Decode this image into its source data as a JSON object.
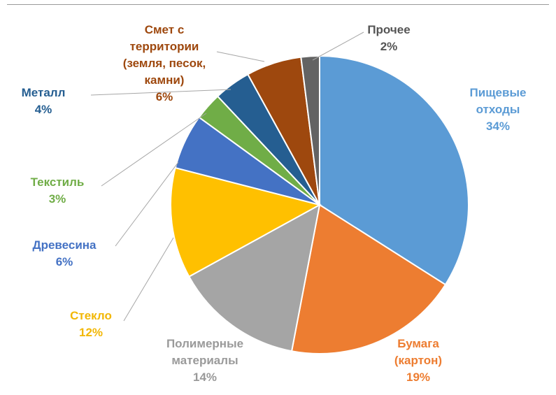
{
  "chart_data": {
    "type": "pie",
    "title": "",
    "slices": [
      {
        "label": [
          "Пищевые",
          "отходы"
        ],
        "value": 34,
        "value_text": "34%",
        "color": "#5B9BD5"
      },
      {
        "label": [
          "Бумага",
          "(картон)"
        ],
        "value": 19,
        "value_text": "19%",
        "color": "#ED7D31"
      },
      {
        "label": [
          "Полимерные",
          "материалы"
        ],
        "value": 14,
        "value_text": "14%",
        "color": "#A5A5A5",
        "label_color": "#9A9A9A"
      },
      {
        "label": [
          "Стекло"
        ],
        "value": 12,
        "value_text": "12%",
        "color": "#FFC000",
        "label_color": "#F2B705"
      },
      {
        "label": [
          "Древесина"
        ],
        "value": 6,
        "value_text": "6%",
        "color": "#4472C4"
      },
      {
        "label": [
          "Текстиль"
        ],
        "value": 3,
        "value_text": "3%",
        "color": "#70AD47"
      },
      {
        "label": [
          "Металл"
        ],
        "value": 4,
        "value_text": "4%",
        "color": "#255E91"
      },
      {
        "label": [
          "Смет с",
          "территории",
          "(земля, песок,",
          "камни)"
        ],
        "value": 6,
        "value_text": "6%",
        "color": "#9E480E"
      },
      {
        "label": [
          "Прочее"
        ],
        "value": 2,
        "value_text": "2%",
        "color": "#636363",
        "label_color": "#555555"
      }
    ],
    "legend": "none",
    "data_labels": "outside with leader lines"
  }
}
